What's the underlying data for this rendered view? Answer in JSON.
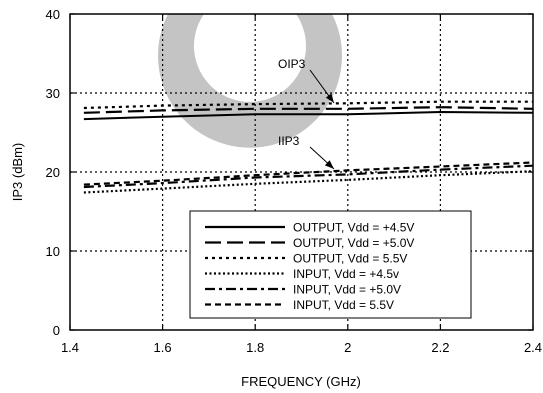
{
  "chart_data": {
    "type": "line",
    "xlabel": "FREQUENCY (GHz)",
    "ylabel": "IP3 (dBm)",
    "xlim": [
      1.4,
      2.4
    ],
    "ylim": [
      0,
      40
    ],
    "x_ticks": [
      1.4,
      1.6,
      1.8,
      2.0,
      2.2,
      2.4
    ],
    "x_tick_labels": [
      "1.4",
      "1.6",
      "1.8",
      "2",
      "2.2",
      "2.4"
    ],
    "y_ticks": [
      0,
      10,
      20,
      30,
      40
    ],
    "y_tick_labels": [
      "0",
      "10",
      "20",
      "30",
      "40"
    ],
    "grid": true,
    "legend_position": "lower-right",
    "annotations": [
      {
        "text": "OIP3",
        "series_index": 1,
        "target_x": 1.97
      },
      {
        "text": "IIP3",
        "series_index": 4,
        "target_x": 1.97
      }
    ],
    "series": [
      {
        "name": "OUTPUT, Vdd = +4.5V",
        "dash": "solid",
        "x": [
          1.43,
          1.6,
          1.8,
          2.0,
          2.2,
          2.4
        ],
        "values": [
          26.7,
          27.0,
          27.3,
          27.3,
          27.6,
          27.5
        ]
      },
      {
        "name": "OUTPUT, Vdd = +5.0V",
        "dash": "long-dash",
        "x": [
          1.43,
          1.6,
          1.8,
          2.0,
          2.2,
          2.4
        ],
        "values": [
          27.5,
          27.8,
          28.0,
          28.0,
          28.2,
          28.0
        ]
      },
      {
        "name": "OUTPUT, Vdd = 5.5V",
        "dash": "dot",
        "x": [
          1.43,
          1.6,
          1.8,
          2.0,
          2.2,
          2.4
        ],
        "values": [
          28.1,
          28.4,
          28.6,
          28.7,
          28.9,
          28.9
        ]
      },
      {
        "name": "INPUT, Vdd = +4.5v",
        "dash": "fine-dot",
        "x": [
          1.43,
          1.6,
          1.8,
          2.0,
          2.2,
          2.4
        ],
        "values": [
          17.4,
          17.9,
          18.5,
          19.0,
          19.6,
          20.1
        ]
      },
      {
        "name": "INPUT, Vdd = +5.0V",
        "dash": "dash-dot",
        "x": [
          1.43,
          1.6,
          1.8,
          2.0,
          2.2,
          2.4
        ],
        "values": [
          18.1,
          18.6,
          19.3,
          19.7,
          20.3,
          20.8
        ]
      },
      {
        "name": "INPUT, Vdd = 5.5V",
        "dash": "short-dash",
        "x": [
          1.43,
          1.6,
          1.8,
          2.0,
          2.2,
          2.4
        ],
        "values": [
          18.4,
          18.9,
          19.6,
          20.2,
          20.7,
          21.2
        ]
      }
    ],
    "colors": {
      "line": "#000000",
      "grid": "#000000",
      "watermark": "#c4c4c4"
    }
  }
}
